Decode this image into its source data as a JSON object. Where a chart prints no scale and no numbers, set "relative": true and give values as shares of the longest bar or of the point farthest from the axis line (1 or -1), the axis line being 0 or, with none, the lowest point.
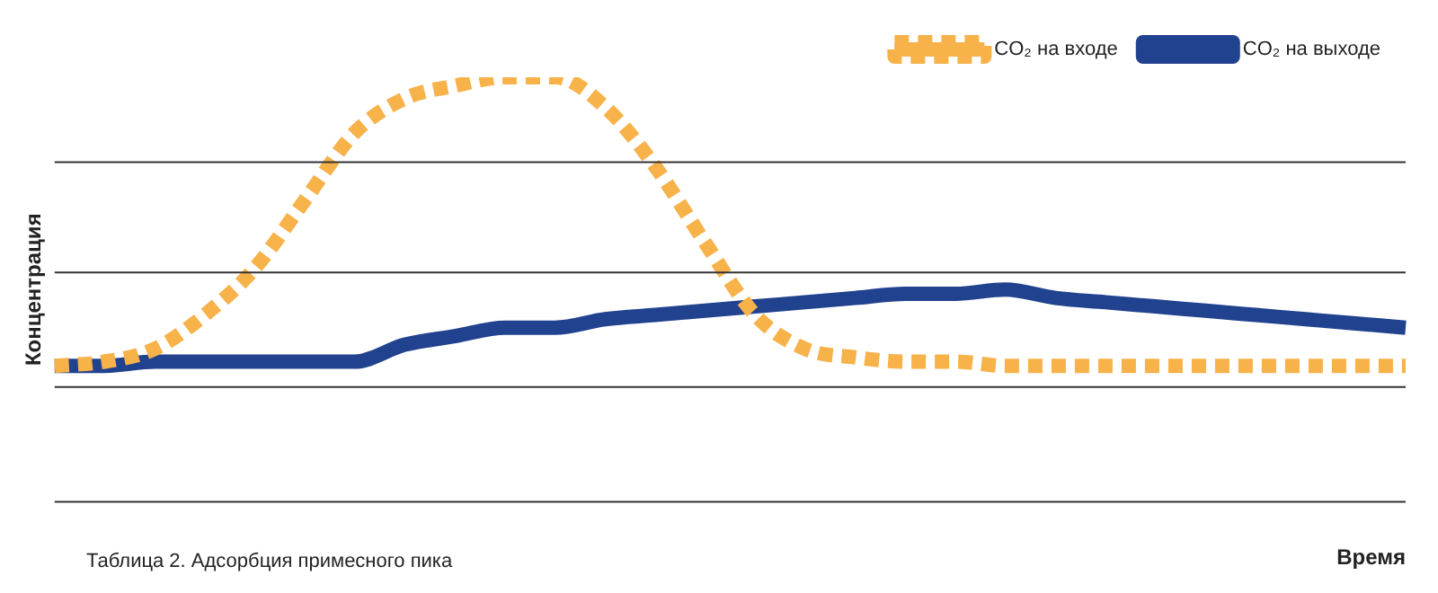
{
  "chart_data": {
    "type": "line",
    "relative": true,
    "xlabel": "Время",
    "ylabel": "Концентрация",
    "annotations": [
      "Таблица 2. Адсорбция примесного пика"
    ],
    "categories": [
      null,
      null,
      null,
      null,
      null,
      null,
      null,
      null,
      null,
      null,
      null,
      null,
      null,
      null,
      null,
      null,
      null,
      null,
      null,
      null,
      null,
      null,
      null,
      null,
      null,
      null,
      null,
      null
    ],
    "series": [
      {
        "name": "CO₂ на входе",
        "color": "#f7b24a",
        "line_style": "dotted",
        "values": [
          0.32,
          0.33,
          0.36,
          0.44,
          0.55,
          0.71,
          0.87,
          0.95,
          0.98,
          1.0,
          1.0,
          0.93,
          0.79,
          0.61,
          0.44,
          0.36,
          0.34,
          0.33,
          0.33,
          0.32,
          0.32,
          0.32,
          0.32,
          0.32,
          0.32,
          0.32,
          0.32,
          0.32
        ]
      },
      {
        "name": "CO₂ на выходе",
        "color": "#21428e",
        "line_style": "solid",
        "values": [
          0.32,
          0.32,
          0.33,
          0.33,
          0.33,
          0.33,
          0.33,
          0.37,
          0.39,
          0.41,
          0.41,
          0.43,
          0.44,
          0.45,
          0.46,
          0.47,
          0.48,
          0.49,
          0.49,
          0.5,
          0.48,
          0.47,
          0.46,
          0.45,
          0.44,
          0.43,
          0.42,
          0.41
        ]
      }
    ],
    "ref_lines": [
      {
        "axis": "y",
        "value": 0,
        "color": "#333333"
      },
      {
        "axis": "y",
        "value": 0.27,
        "color": "#333333"
      },
      {
        "axis": "y",
        "value": 0.54,
        "color": "#333333"
      },
      {
        "axis": "y",
        "value": 0.8,
        "color": "#333333"
      }
    ],
    "legend": "top right"
  }
}
